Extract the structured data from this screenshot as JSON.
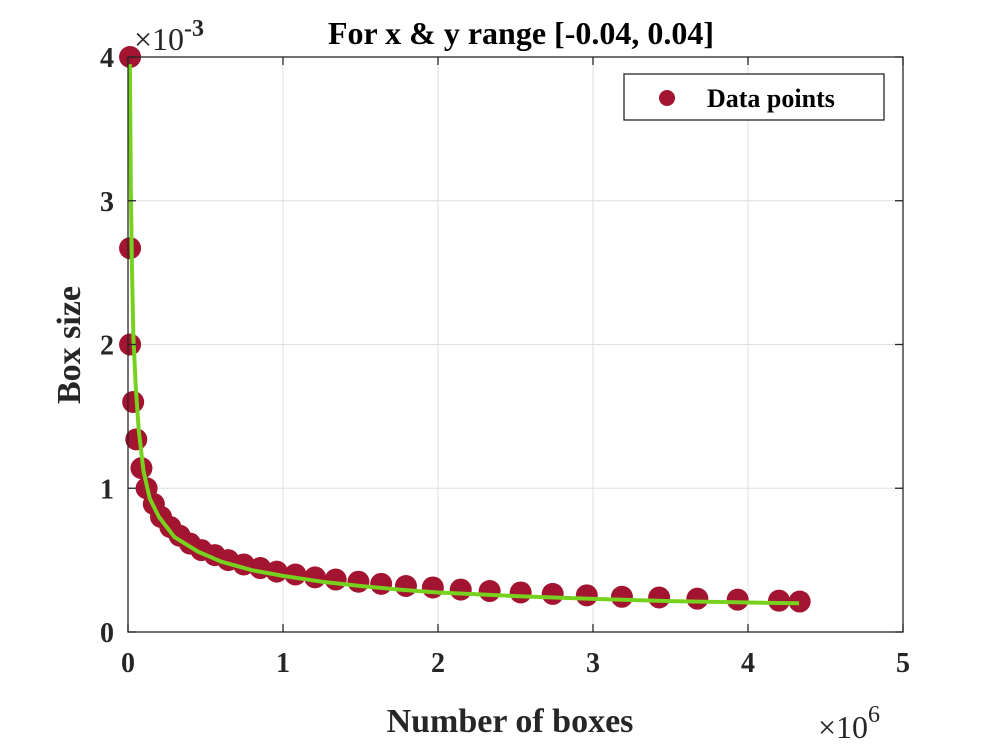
{
  "chart_data": {
    "type": "scatter",
    "title": "For x & y range [-0.04, 0.04]",
    "xlabel": "Number of boxes",
    "ylabel": "Box size",
    "x_multiplier": "×10",
    "x_exponent": "6",
    "y_multiplier": "×10",
    "y_exponent": "-3",
    "xlim": [
      0,
      5
    ],
    "ylim": [
      0,
      4
    ],
    "xticks": [
      0,
      1,
      2,
      3,
      4,
      5
    ],
    "yticks": [
      0,
      1,
      2,
      3,
      4
    ],
    "xtick_labels": [
      "0",
      "1",
      "2",
      "3",
      "4",
      "5"
    ],
    "ytick_labels": [
      "0",
      "1",
      "2",
      "3",
      "4"
    ],
    "grid": true,
    "legend_position": "top-right",
    "colors": {
      "points": "#A2142F",
      "fit": "#77D21F"
    },
    "series": [
      {
        "name": "Data points",
        "kind": "points",
        "x": [
          0.0133,
          0.0133,
          0.0133,
          0.0333,
          0.0533,
          0.0867,
          0.12,
          0.1667,
          0.2133,
          0.2733,
          0.3333,
          0.4,
          0.4733,
          0.56,
          0.6467,
          0.7467,
          0.8533,
          0.96,
          1.08,
          1.2067,
          1.34,
          1.4867,
          1.6333,
          1.7933,
          1.9667,
          2.1467,
          2.3333,
          2.5333,
          2.74,
          2.96,
          3.1867,
          3.4267,
          3.6733,
          3.9333,
          4.2,
          4.3333
        ],
        "y": [
          4.0,
          2.67,
          2.0,
          1.6,
          1.34,
          1.14,
          1.0,
          0.89,
          0.8,
          0.73,
          0.67,
          0.615,
          0.57,
          0.535,
          0.5,
          0.47,
          0.445,
          0.42,
          0.4,
          0.38,
          0.365,
          0.35,
          0.335,
          0.32,
          0.31,
          0.295,
          0.285,
          0.275,
          0.265,
          0.255,
          0.245,
          0.24,
          0.232,
          0.225,
          0.218,
          0.212
        ]
      },
      {
        "name": "",
        "kind": "fit",
        "x": [
          0.012,
          0.018,
          0.025,
          0.035,
          0.05,
          0.07,
          0.1,
          0.14,
          0.2,
          0.3,
          0.45,
          0.6,
          0.8,
          1.0,
          1.25,
          1.5,
          1.75,
          2.0,
          2.5,
          3.0,
          3.5,
          4.0,
          4.33
        ],
        "y": [
          3.95,
          3.1,
          2.55,
          2.05,
          1.7,
          1.4,
          1.12,
          0.93,
          0.8,
          0.66,
          0.56,
          0.49,
          0.43,
          0.39,
          0.35,
          0.32,
          0.295,
          0.275,
          0.25,
          0.23,
          0.215,
          0.205,
          0.2
        ]
      }
    ]
  }
}
